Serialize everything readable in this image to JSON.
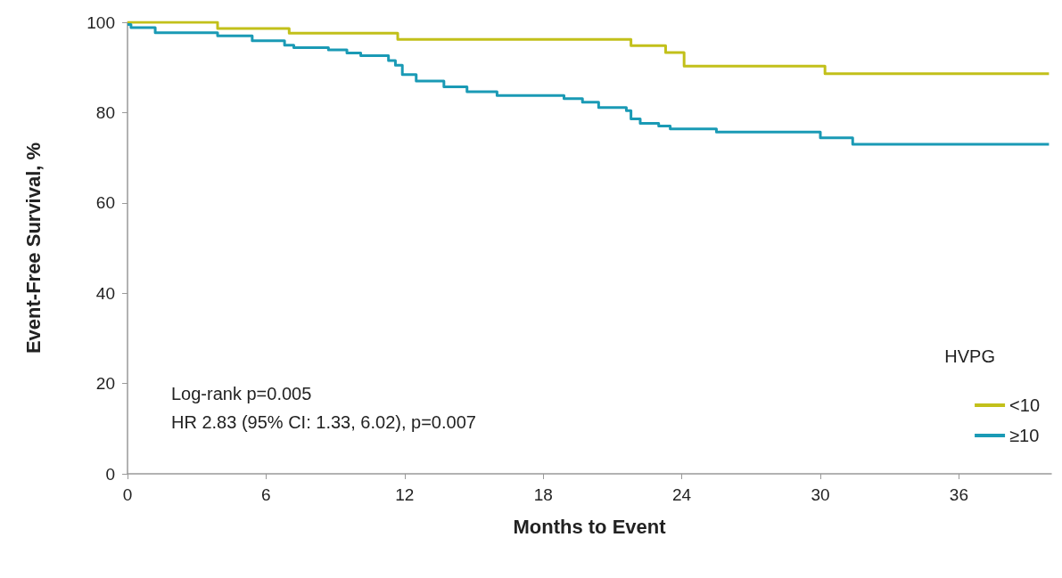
{
  "chart_data": {
    "type": "step",
    "xlabel": "Months to Event",
    "ylabel": "Event-Free Survival, %",
    "legend_title": "HVPG",
    "legend": "bottom right",
    "grid": false,
    "xlim": [
      0,
      40
    ],
    "xticks": [
      0,
      6,
      12,
      18,
      24,
      30,
      36
    ],
    "ylim": [
      0,
      100
    ],
    "yticks": [
      0,
      20,
      40,
      60,
      80,
      100
    ],
    "annotations": [
      "Log-rank p=0.005",
      "HR 2.83 (95% CI: 1.33, 6.02), p=0.007"
    ],
    "series": [
      {
        "name": "<10",
        "color": "#c2c01a",
        "x": [
          0,
          3.9,
          7.0,
          11.7,
          21.8,
          23.3,
          24.1,
          30.2,
          39.9
        ],
        "values": [
          100,
          98.6,
          97.6,
          96.2,
          94.8,
          93.3,
          90.3,
          88.6,
          88.6
        ]
      },
      {
        "name": "≥10",
        "color": "#1a9ab5",
        "x": [
          0,
          0.15,
          1.2,
          3.9,
          5.4,
          6.8,
          7.2,
          8.7,
          9.5,
          10.1,
          11.3,
          11.6,
          11.9,
          12.5,
          13.7,
          14.7,
          16.0,
          18.9,
          19.7,
          20.4,
          21.6,
          21.8,
          22.2,
          23.0,
          23.5,
          25.5,
          30.0,
          31.4,
          39.9
        ],
        "values": [
          99.5,
          98.8,
          97.7,
          97.0,
          95.9,
          94.9,
          94.4,
          93.9,
          93.2,
          92.6,
          91.5,
          90.5,
          88.4,
          87.0,
          85.7,
          84.6,
          83.8,
          83.1,
          82.3,
          81.1,
          80.4,
          78.6,
          77.6,
          77.0,
          76.4,
          75.7,
          74.4,
          73.0,
          73.0
        ]
      }
    ]
  }
}
